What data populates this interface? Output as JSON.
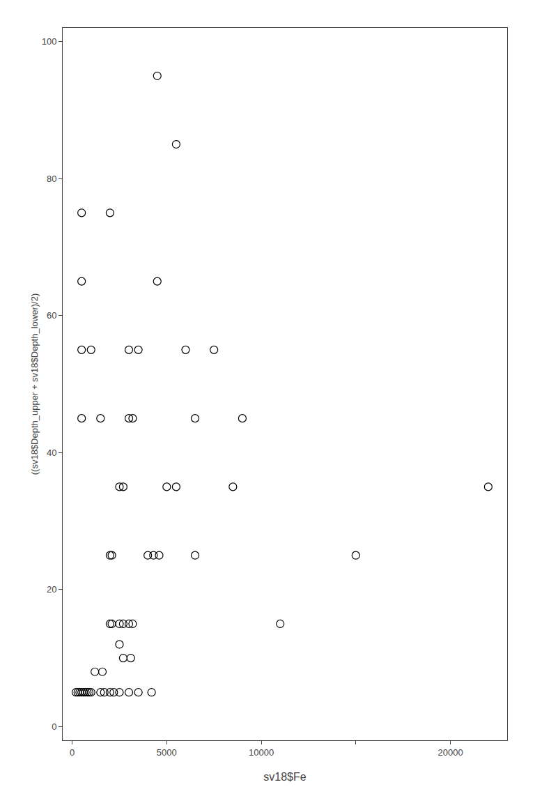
{
  "chart_data": {
    "type": "scatter",
    "x": [
      500,
      2000,
      500,
      4500,
      4500,
      5500,
      500,
      1000,
      3000,
      3500,
      6000,
      7500,
      500,
      1500,
      3000,
      3200,
      6500,
      9000,
      2500,
      2700,
      5000,
      5500,
      8500,
      22000,
      2000,
      2100,
      4000,
      4300,
      4600,
      6500,
      15000,
      2000,
      2100,
      2500,
      2700,
      3000,
      3200,
      11000,
      2500,
      2700,
      3100,
      1200,
      1600,
      200,
      300,
      400,
      500,
      600,
      700,
      800,
      900,
      1000,
      1500,
      1700,
      2000,
      2200,
      2500,
      3000,
      3500,
      4200
    ],
    "values": [
      75,
      75,
      65,
      65,
      95,
      85,
      55,
      55,
      55,
      55,
      55,
      55,
      45,
      45,
      45,
      45,
      45,
      45,
      35,
      35,
      35,
      35,
      35,
      35,
      25,
      25,
      25,
      25,
      25,
      25,
      25,
      15,
      15,
      15,
      15,
      15,
      15,
      15,
      12,
      10,
      10,
      8,
      8,
      5,
      5,
      5,
      5,
      5,
      5,
      5,
      5,
      5,
      5,
      5,
      5,
      5,
      5,
      5,
      5,
      5
    ],
    "xlabel": "sv18$Fe",
    "ylabel": "((sv18$Depth_upper + sv18$Depth_lower)/2)",
    "xlim": [
      -500,
      23000
    ],
    "ylim": [
      -2,
      102
    ],
    "xticks": [
      0,
      5000,
      10000,
      {
        "value": 15000,
        "label": null
      },
      20000
    ],
    "yticks": [
      0,
      20,
      40,
      60,
      80,
      100
    ],
    "color": "black",
    "marker": "circle-open",
    "grid": false
  }
}
